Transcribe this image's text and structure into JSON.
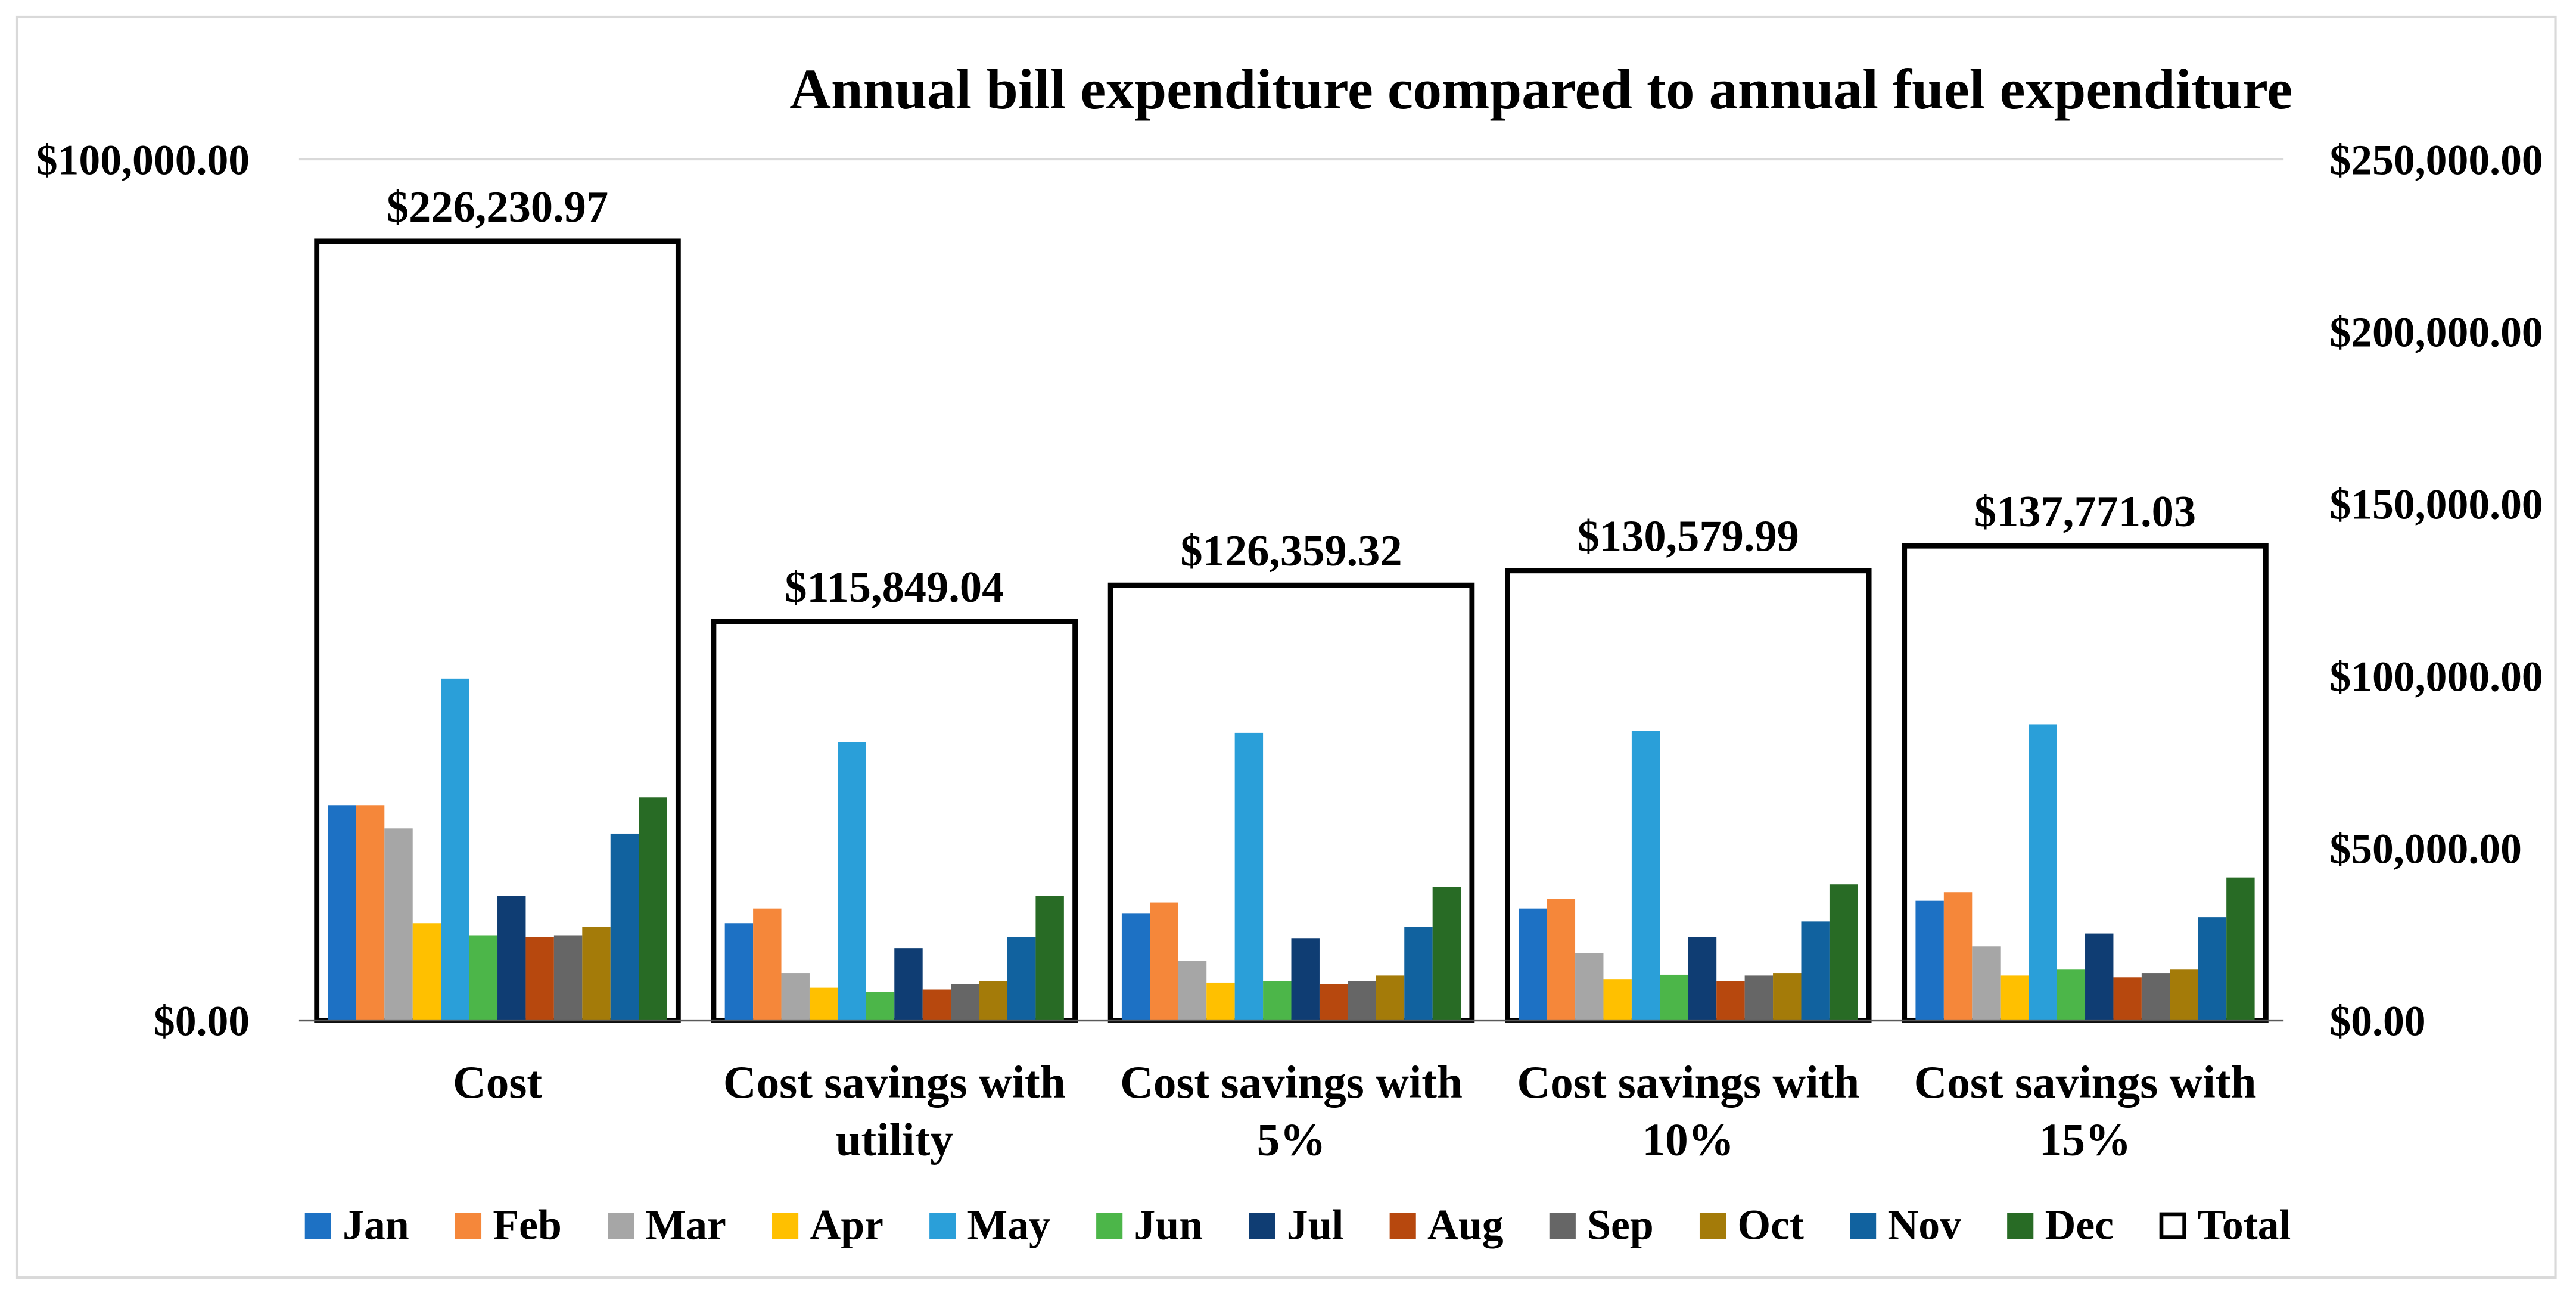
{
  "chart_data": {
    "type": "bar",
    "title": "Annual bill expenditure compared to annual fuel expenditure",
    "categories": [
      [
        "Cost"
      ],
      [
        "Cost savings with",
        "utility"
      ],
      [
        "Cost savings with",
        "5%"
      ],
      [
        "Cost savings with",
        "10%"
      ],
      [
        "Cost savings with",
        "15%"
      ]
    ],
    "axes": {
      "left": {
        "min": 0,
        "max": 100000,
        "ticks": [
          0,
          100000
        ],
        "tick_labels": [
          "$0.00",
          "$100,000.00"
        ]
      },
      "right": {
        "min": 0,
        "max": 250000,
        "ticks": [
          0,
          50000,
          100000,
          150000,
          200000,
          250000
        ],
        "tick_labels": [
          "$0.00",
          "$50,000.00",
          "$100,000.00",
          "$150,000.00",
          "$200,000.00",
          "$250,000.00"
        ]
      }
    },
    "grid": true,
    "legend": {
      "position": "bottom"
    },
    "series": [
      {
        "name": "Jan",
        "type": "bar",
        "axis": "left",
        "color": "#1D71C4",
        "values": [
          25000,
          11300,
          12400,
          13000,
          13900
        ]
      },
      {
        "name": "Feb",
        "type": "bar",
        "axis": "left",
        "color": "#F5873A",
        "values": [
          25000,
          13000,
          13700,
          14100,
          14900
        ]
      },
      {
        "name": "Mar",
        "type": "bar",
        "axis": "left",
        "color": "#A6A6A6",
        "values": [
          22300,
          5500,
          6900,
          7800,
          8600
        ]
      },
      {
        "name": "Apr",
        "type": "bar",
        "axis": "left",
        "color": "#FFC000",
        "values": [
          11300,
          3800,
          4400,
          4800,
          5200
        ]
      },
      {
        "name": "May",
        "type": "bar",
        "axis": "left",
        "color": "#2A9FD9",
        "values": [
          39700,
          32300,
          33400,
          33600,
          34400
        ]
      },
      {
        "name": "Jun",
        "type": "bar",
        "axis": "left",
        "color": "#4CB649",
        "values": [
          9900,
          3300,
          4600,
          5300,
          5900
        ]
      },
      {
        "name": "Jul",
        "type": "bar",
        "axis": "left",
        "color": "#0F3D73",
        "values": [
          14500,
          8400,
          9500,
          9700,
          10100
        ]
      },
      {
        "name": "Aug",
        "type": "bar",
        "axis": "left",
        "color": "#B7480E",
        "values": [
          9700,
          3600,
          4200,
          4600,
          5000
        ]
      },
      {
        "name": "Sep",
        "type": "bar",
        "axis": "left",
        "color": "#666666",
        "values": [
          9900,
          4200,
          4600,
          5200,
          5500
        ]
      },
      {
        "name": "Oct",
        "type": "bar",
        "axis": "left",
        "color": "#A47B09",
        "values": [
          10900,
          4600,
          5200,
          5500,
          5900
        ]
      },
      {
        "name": "Nov",
        "type": "bar",
        "axis": "left",
        "color": "#11629F",
        "values": [
          21700,
          9700,
          10900,
          11500,
          12000
        ]
      },
      {
        "name": "Dec",
        "type": "bar",
        "axis": "left",
        "color": "#286B25",
        "values": [
          25900,
          14500,
          15500,
          15800,
          16600
        ]
      },
      {
        "name": "Total",
        "type": "box",
        "axis": "right",
        "color": "#000000",
        "fill": "#FFFFFF",
        "values": [
          226230.97,
          115849.04,
          126359.32,
          130579.99,
          137771.03
        ],
        "labels": [
          "$226,230.97",
          "$115,849.04",
          "$126,359.32",
          "$130,579.99",
          "$137,771.03"
        ]
      }
    ]
  }
}
